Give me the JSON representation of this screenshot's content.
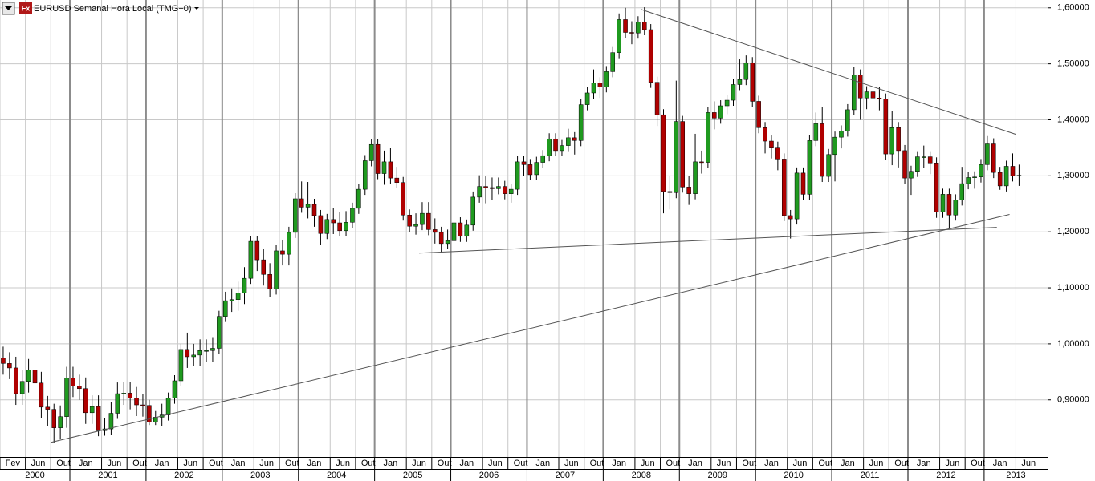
{
  "chart_data": {
    "type": "candlestick",
    "title": "EURUSD Semanal Hora Local (TMG+0)",
    "icon": "Fx",
    "up_color": "#1f9a1f",
    "down_color": "#b00000",
    "grid": true,
    "xlim": [
      "2000-02",
      "2013-11"
    ],
    "ylim": [
      0.798,
      1.614
    ],
    "yticks": [
      {
        "value": 0.9,
        "label": "0,90000"
      },
      {
        "value": 1.0,
        "label": "1,00000"
      },
      {
        "value": 1.1,
        "label": "1,10000"
      },
      {
        "value": 1.2,
        "label": "1,20000"
      },
      {
        "value": 1.3,
        "label": "1,30000"
      },
      {
        "value": 1.4,
        "label": "1,40000"
      },
      {
        "value": 1.5,
        "label": "1,50000"
      },
      {
        "value": 1.6,
        "label": "1,60000"
      }
    ],
    "xticks": [
      {
        "value": "2000-02",
        "label": "Fev"
      },
      {
        "value": "2000-06",
        "label": "Jun"
      },
      {
        "value": "2000-10",
        "label": "Out"
      },
      {
        "value": "2001-01",
        "label": "Jan"
      },
      {
        "value": "2001-06",
        "label": "Jun"
      },
      {
        "value": "2001-10",
        "label": "Out"
      },
      {
        "value": "2002-01",
        "label": "Jan"
      },
      {
        "value": "2002-06",
        "label": "Jun"
      },
      {
        "value": "2002-10",
        "label": "Out"
      },
      {
        "value": "2003-01",
        "label": "Jan"
      },
      {
        "value": "2003-06",
        "label": "Jun"
      },
      {
        "value": "2003-10",
        "label": "Out"
      },
      {
        "value": "2004-01",
        "label": "Jan"
      },
      {
        "value": "2004-06",
        "label": "Jun"
      },
      {
        "value": "2004-10",
        "label": "Out"
      },
      {
        "value": "2005-01",
        "label": "Jan"
      },
      {
        "value": "2005-06",
        "label": "Jun"
      },
      {
        "value": "2005-10",
        "label": "Out"
      },
      {
        "value": "2006-01",
        "label": "Jan"
      },
      {
        "value": "2006-06",
        "label": "Jun"
      },
      {
        "value": "2006-10",
        "label": "Out"
      },
      {
        "value": "2007-01",
        "label": "Jan"
      },
      {
        "value": "2007-06",
        "label": "Jun"
      },
      {
        "value": "2007-10",
        "label": "Out"
      },
      {
        "value": "2008-01",
        "label": "Jan"
      },
      {
        "value": "2008-06",
        "label": "Jun"
      },
      {
        "value": "2008-10",
        "label": "Out"
      },
      {
        "value": "2009-01",
        "label": "Jan"
      },
      {
        "value": "2009-06",
        "label": "Jun"
      },
      {
        "value": "2009-10",
        "label": "Out"
      },
      {
        "value": "2010-01",
        "label": "Jan"
      },
      {
        "value": "2010-06",
        "label": "Jun"
      },
      {
        "value": "2010-10",
        "label": "Out"
      },
      {
        "value": "2011-01",
        "label": "Jan"
      },
      {
        "value": "2011-06",
        "label": "Jun"
      },
      {
        "value": "2011-10",
        "label": "Out"
      },
      {
        "value": "2012-01",
        "label": "Jan"
      },
      {
        "value": "2012-06",
        "label": "Jun"
      },
      {
        "value": "2012-10",
        "label": "Out"
      },
      {
        "value": "2013-01",
        "label": "Jan"
      },
      {
        "value": "2013-06",
        "label": "Jun"
      }
    ],
    "years": [
      "2000",
      "2001",
      "2002",
      "2003",
      "2004",
      "2005",
      "2006",
      "2007",
      "2008",
      "2009",
      "2010",
      "2011",
      "2012",
      "2013"
    ],
    "x": [
      "2000-02",
      "2000-03",
      "2000-04",
      "2000-05",
      "2000-06",
      "2000-07",
      "2000-08",
      "2000-09",
      "2000-10",
      "2000-11",
      "2000-12",
      "2001-01",
      "2001-02",
      "2001-03",
      "2001-04",
      "2001-05",
      "2001-06",
      "2001-07",
      "2001-08",
      "2001-09",
      "2001-10",
      "2001-11",
      "2001-12",
      "2002-01",
      "2002-02",
      "2002-03",
      "2002-04",
      "2002-05",
      "2002-06",
      "2002-07",
      "2002-08",
      "2002-09",
      "2002-10",
      "2002-11",
      "2002-12",
      "2003-01",
      "2003-02",
      "2003-03",
      "2003-04",
      "2003-05",
      "2003-06",
      "2003-07",
      "2003-08",
      "2003-09",
      "2003-10",
      "2003-11",
      "2003-12",
      "2004-01",
      "2004-02",
      "2004-03",
      "2004-04",
      "2004-05",
      "2004-06",
      "2004-07",
      "2004-08",
      "2004-09",
      "2004-10",
      "2004-11",
      "2004-12",
      "2005-01",
      "2005-02",
      "2005-03",
      "2005-04",
      "2005-05",
      "2005-06",
      "2005-07",
      "2005-08",
      "2005-09",
      "2005-10",
      "2005-11",
      "2005-12",
      "2006-01",
      "2006-02",
      "2006-03",
      "2006-04",
      "2006-05",
      "2006-06",
      "2006-07",
      "2006-08",
      "2006-09",
      "2006-10",
      "2006-11",
      "2006-12",
      "2007-01",
      "2007-02",
      "2007-03",
      "2007-04",
      "2007-05",
      "2007-06",
      "2007-07",
      "2007-08",
      "2007-09",
      "2007-10",
      "2007-11",
      "2007-12",
      "2008-01",
      "2008-02",
      "2008-03",
      "2008-04",
      "2008-05",
      "2008-06",
      "2008-07",
      "2008-08",
      "2008-09",
      "2008-10",
      "2008-11",
      "2008-12",
      "2009-01",
      "2009-02",
      "2009-03",
      "2009-04",
      "2009-05",
      "2009-06",
      "2009-07",
      "2009-08",
      "2009-09",
      "2009-10",
      "2009-11",
      "2009-12",
      "2010-01",
      "2010-02",
      "2010-03",
      "2010-04",
      "2010-05",
      "2010-06",
      "2010-07",
      "2010-08",
      "2010-09",
      "2010-10",
      "2010-11",
      "2010-12",
      "2011-01",
      "2011-02",
      "2011-03",
      "2011-04",
      "2011-05",
      "2011-06",
      "2011-07",
      "2011-08",
      "2011-09",
      "2011-10",
      "2011-11",
      "2011-12",
      "2012-01",
      "2012-02",
      "2012-03",
      "2012-04",
      "2012-05",
      "2012-06",
      "2012-07",
      "2012-08",
      "2012-09",
      "2012-10",
      "2012-11",
      "2012-12",
      "2013-01",
      "2013-02",
      "2013-03",
      "2013-04",
      "2013-05",
      "2013-06"
    ],
    "open": [
      0.975,
      0.965,
      0.957,
      0.911,
      0.933,
      0.953,
      0.93,
      0.887,
      0.883,
      0.85,
      0.87,
      0.939,
      0.925,
      0.92,
      0.877,
      0.888,
      0.845,
      0.848,
      0.876,
      0.911,
      0.912,
      0.903,
      0.891,
      0.89,
      0.86,
      0.869,
      0.873,
      0.903,
      0.934,
      0.99,
      0.977,
      0.98,
      0.988,
      0.988,
      0.992,
      1.049,
      1.077,
      1.079,
      1.091,
      1.117,
      1.183,
      1.15,
      1.124,
      1.098,
      1.166,
      1.16,
      1.199,
      1.259,
      1.244,
      1.249,
      1.229,
      1.197,
      1.222,
      1.216,
      1.202,
      1.217,
      1.242,
      1.276,
      1.327,
      1.356,
      1.304,
      1.325,
      1.296,
      1.288,
      1.23,
      1.21,
      1.213,
      1.233,
      1.204,
      1.199,
      1.179,
      1.184,
      1.216,
      1.192,
      1.212,
      1.262,
      1.281,
      1.279,
      1.277,
      1.281,
      1.268,
      1.276,
      1.325,
      1.32,
      1.302,
      1.324,
      1.336,
      1.366,
      1.345,
      1.354,
      1.368,
      1.363,
      1.427,
      1.448,
      1.466,
      1.459,
      1.486,
      1.52,
      1.579,
      1.556,
      1.555,
      1.575,
      1.561,
      1.467,
      1.409,
      1.272,
      1.27,
      1.397,
      1.28,
      1.268,
      1.325,
      1.324,
      1.413,
      1.403,
      1.425,
      1.435,
      1.463,
      1.472,
      1.502,
      1.433,
      1.386,
      1.362,
      1.351,
      1.33,
      1.229,
      1.223,
      1.305,
      1.267,
      1.363,
      1.393,
      1.299,
      1.338,
      1.369,
      1.38,
      1.418,
      1.48,
      1.439,
      1.45,
      1.439,
      1.437,
      1.339,
      1.386,
      1.345,
      1.296,
      1.308,
      1.334,
      1.334,
      1.323,
      1.235,
      1.267,
      1.23,
      1.257,
      1.286,
      1.297,
      1.298,
      1.32,
      1.357,
      1.306,
      1.282,
      1.317,
      1.3
    ],
    "high": [
      0.995,
      0.985,
      0.977,
      0.953,
      0.973,
      0.973,
      0.95,
      0.907,
      0.893,
      0.89,
      0.959,
      0.959,
      0.945,
      0.94,
      0.908,
      0.908,
      0.868,
      0.896,
      0.931,
      0.932,
      0.932,
      0.923,
      0.911,
      0.9,
      0.88,
      0.893,
      0.913,
      0.944,
      1.0,
      1.02,
      1.0,
      1.008,
      1.008,
      1.012,
      1.059,
      1.093,
      1.099,
      1.111,
      1.137,
      1.193,
      1.193,
      1.17,
      1.144,
      1.176,
      1.186,
      1.209,
      1.269,
      1.29,
      1.289,
      1.259,
      1.239,
      1.232,
      1.242,
      1.236,
      1.237,
      1.252,
      1.286,
      1.337,
      1.366,
      1.366,
      1.345,
      1.35,
      1.316,
      1.298,
      1.24,
      1.233,
      1.253,
      1.253,
      1.224,
      1.209,
      1.204,
      1.236,
      1.226,
      1.222,
      1.272,
      1.301,
      1.299,
      1.297,
      1.297,
      1.291,
      1.286,
      1.335,
      1.335,
      1.33,
      1.334,
      1.346,
      1.376,
      1.376,
      1.364,
      1.384,
      1.378,
      1.437,
      1.458,
      1.49,
      1.476,
      1.496,
      1.53,
      1.59,
      1.6,
      1.576,
      1.585,
      1.601,
      1.571,
      1.477,
      1.419,
      1.3,
      1.47,
      1.407,
      1.3,
      1.375,
      1.345,
      1.423,
      1.433,
      1.435,
      1.445,
      1.473,
      1.508,
      1.515,
      1.512,
      1.443,
      1.396,
      1.372,
      1.361,
      1.34,
      1.239,
      1.315,
      1.315,
      1.373,
      1.413,
      1.423,
      1.348,
      1.379,
      1.39,
      1.428,
      1.494,
      1.49,
      1.46,
      1.46,
      1.459,
      1.447,
      1.416,
      1.396,
      1.355,
      1.318,
      1.344,
      1.354,
      1.344,
      1.333,
      1.277,
      1.277,
      1.267,
      1.316,
      1.307,
      1.308,
      1.33,
      1.371,
      1.367,
      1.316,
      1.327,
      1.34,
      1.32
    ],
    "low": [
      0.945,
      0.937,
      0.891,
      0.891,
      0.913,
      0.91,
      0.867,
      0.853,
      0.823,
      0.83,
      0.85,
      0.905,
      0.9,
      0.857,
      0.857,
      0.835,
      0.836,
      0.838,
      0.866,
      0.891,
      0.883,
      0.871,
      0.87,
      0.855,
      0.855,
      0.853,
      0.863,
      0.893,
      0.924,
      0.957,
      0.96,
      0.96,
      0.968,
      0.968,
      0.982,
      1.039,
      1.057,
      1.059,
      1.071,
      1.107,
      1.13,
      1.104,
      1.083,
      1.088,
      1.14,
      1.14,
      1.189,
      1.234,
      1.224,
      1.209,
      1.177,
      1.187,
      1.196,
      1.192,
      1.192,
      1.207,
      1.232,
      1.266,
      1.317,
      1.294,
      1.284,
      1.286,
      1.278,
      1.22,
      1.2,
      1.195,
      1.203,
      1.194,
      1.179,
      1.164,
      1.17,
      1.174,
      1.182,
      1.182,
      1.202,
      1.252,
      1.251,
      1.257,
      1.267,
      1.258,
      1.252,
      1.266,
      1.3,
      1.292,
      1.292,
      1.314,
      1.326,
      1.335,
      1.335,
      1.344,
      1.338,
      1.353,
      1.417,
      1.438,
      1.439,
      1.449,
      1.476,
      1.51,
      1.546,
      1.535,
      1.545,
      1.551,
      1.457,
      1.389,
      1.233,
      1.24,
      1.26,
      1.27,
      1.248,
      1.258,
      1.304,
      1.314,
      1.383,
      1.393,
      1.41,
      1.425,
      1.453,
      1.462,
      1.423,
      1.376,
      1.34,
      1.331,
      1.31,
      1.219,
      1.188,
      1.213,
      1.257,
      1.257,
      1.353,
      1.289,
      1.289,
      1.29,
      1.349,
      1.37,
      1.408,
      1.4,
      1.419,
      1.419,
      1.417,
      1.329,
      1.319,
      1.315,
      1.286,
      1.266,
      1.298,
      1.314,
      1.303,
      1.225,
      1.225,
      1.204,
      1.22,
      1.247,
      1.276,
      1.277,
      1.288,
      1.31,
      1.296,
      1.275,
      1.272,
      1.29,
      1.282
    ],
    "close": [
      0.965,
      0.957,
      0.911,
      0.933,
      0.953,
      0.93,
      0.887,
      0.883,
      0.85,
      0.87,
      0.939,
      0.925,
      0.92,
      0.877,
      0.888,
      0.845,
      0.848,
      0.876,
      0.911,
      0.912,
      0.903,
      0.891,
      0.89,
      0.86,
      0.869,
      0.873,
      0.903,
      0.934,
      0.99,
      0.977,
      0.98,
      0.988,
      0.988,
      0.992,
      1.049,
      1.077,
      1.079,
      1.091,
      1.117,
      1.183,
      1.15,
      1.124,
      1.098,
      1.166,
      1.16,
      1.199,
      1.259,
      1.244,
      1.249,
      1.229,
      1.197,
      1.222,
      1.216,
      1.202,
      1.217,
      1.242,
      1.276,
      1.327,
      1.356,
      1.304,
      1.325,
      1.296,
      1.288,
      1.23,
      1.21,
      1.213,
      1.233,
      1.204,
      1.199,
      1.179,
      1.184,
      1.216,
      1.192,
      1.212,
      1.262,
      1.281,
      1.279,
      1.277,
      1.281,
      1.268,
      1.276,
      1.325,
      1.32,
      1.302,
      1.324,
      1.336,
      1.366,
      1.345,
      1.354,
      1.368,
      1.363,
      1.427,
      1.448,
      1.466,
      1.459,
      1.486,
      1.52,
      1.579,
      1.556,
      1.555,
      1.575,
      1.561,
      1.467,
      1.409,
      1.272,
      1.27,
      1.397,
      1.28,
      1.268,
      1.325,
      1.324,
      1.413,
      1.403,
      1.425,
      1.435,
      1.463,
      1.472,
      1.502,
      1.433,
      1.386,
      1.362,
      1.351,
      1.33,
      1.229,
      1.223,
      1.305,
      1.267,
      1.363,
      1.393,
      1.299,
      1.338,
      1.369,
      1.38,
      1.418,
      1.48,
      1.439,
      1.45,
      1.439,
      1.437,
      1.339,
      1.386,
      1.345,
      1.296,
      1.308,
      1.334,
      1.334,
      1.323,
      1.235,
      1.267,
      1.23,
      1.257,
      1.286,
      1.297,
      1.298,
      1.32,
      1.357,
      1.306,
      1.282,
      1.317,
      1.3,
      1.301
    ],
    "trendlines": [
      {
        "x": [
          "2000-10",
          "2013-05"
        ],
        "y": [
          0.824,
          1.231
        ]
      },
      {
        "x": [
          "2005-08",
          "2013-03"
        ],
        "y": [
          1.162,
          1.208
        ]
      },
      {
        "x": [
          "2008-07",
          "2013-06"
        ],
        "y": [
          1.597,
          1.374
        ]
      }
    ]
  }
}
